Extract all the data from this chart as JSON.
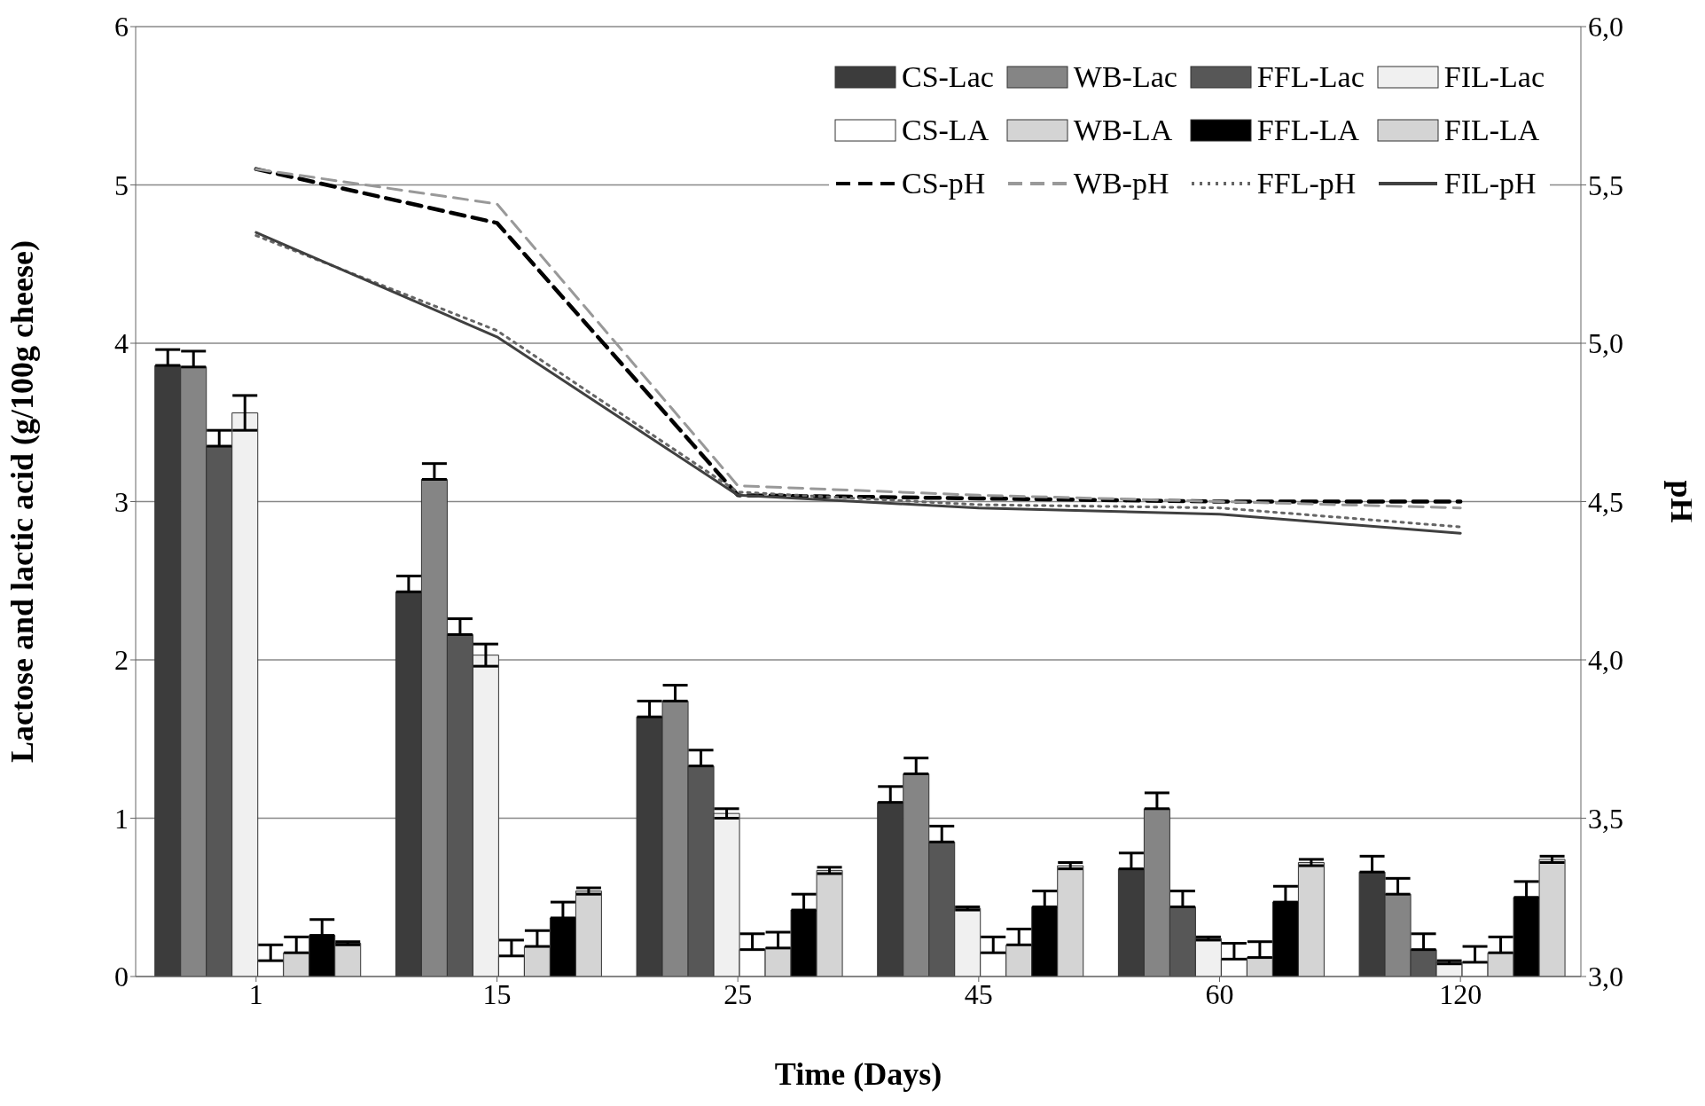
{
  "chart_data": {
    "type": "bar",
    "xlabel": "Time (Days)",
    "ylabel": "Lactose and lactic acid (g/100g cheese)",
    "y2label": "pH",
    "categories": [
      "1",
      "15",
      "25",
      "45",
      "60",
      "120"
    ],
    "ylim": [
      0,
      6
    ],
    "yticks": [
      0,
      1,
      2,
      3,
      4,
      5,
      6
    ],
    "y2lim": [
      3,
      6
    ],
    "y2ticks": [
      {
        "value": 3,
        "label": "3,0"
      },
      {
        "value": 3.5,
        "label": "3,5"
      },
      {
        "value": 4,
        "label": "4,0"
      },
      {
        "value": 4.5,
        "label": "4,5"
      },
      {
        "value": 5,
        "label": "5,0"
      },
      {
        "value": 5.5,
        "label": "5,5"
      },
      {
        "value": 6,
        "label": "6,0"
      }
    ],
    "grid": "y",
    "legend": "top right",
    "series": [
      {
        "name": "CS-Lac",
        "color": "#3c3c3c",
        "values": [
          3.86,
          2.43,
          1.64,
          1.1,
          0.68,
          0.66
        ],
        "errors": [
          [
            3.86,
            3.96
          ],
          [
            2.43,
            2.53
          ],
          [
            1.64,
            1.74
          ],
          [
            1.1,
            1.2
          ],
          [
            0.68,
            0.78
          ],
          [
            0.66,
            0.76
          ]
        ]
      },
      {
        "name": "WB-Lac",
        "color": "#858585",
        "values": [
          3.85,
          3.14,
          1.74,
          1.28,
          1.06,
          0.52
        ],
        "errors": [
          [
            3.85,
            3.95
          ],
          [
            3.14,
            3.24
          ],
          [
            1.74,
            1.84
          ],
          [
            1.28,
            1.38
          ],
          [
            1.06,
            1.16
          ],
          [
            0.52,
            0.62
          ]
        ]
      },
      {
        "name": "FFL-Lac",
        "color": "#575757",
        "values": [
          3.35,
          2.16,
          1.33,
          0.85,
          0.44,
          0.17
        ],
        "errors": [
          [
            3.35,
            3.45
          ],
          [
            2.16,
            2.26
          ],
          [
            1.33,
            1.43
          ],
          [
            0.85,
            0.95
          ],
          [
            0.44,
            0.54
          ],
          [
            0.17,
            0.27
          ]
        ]
      },
      {
        "name": "FIL-Lac",
        "color": "#f0f0f0",
        "values": [
          3.56,
          2.03,
          1.03,
          0.43,
          0.24,
          0.09
        ],
        "errors": [
          0.11,
          0.07,
          0.03,
          0.01,
          0.01,
          0.01
        ]
      },
      {
        "name": "CS-LA",
        "color": "#ffffff",
        "values": [
          0.1,
          0.13,
          0.17,
          0.15,
          0.11,
          0.09
        ],
        "errors": [
          [
            0.1,
            0.2
          ],
          [
            0.13,
            0.23
          ],
          [
            0.17,
            0.27
          ],
          [
            0.15,
            0.25
          ],
          [
            0.11,
            0.21
          ],
          [
            0.09,
            0.19
          ]
        ]
      },
      {
        "name": "WB-LA",
        "color": "#d4d4d4",
        "values": [
          0.15,
          0.19,
          0.18,
          0.2,
          0.12,
          0.15
        ],
        "errors": [
          [
            0.15,
            0.25
          ],
          [
            0.19,
            0.29
          ],
          [
            0.18,
            0.28
          ],
          [
            0.2,
            0.3
          ],
          [
            0.12,
            0.22
          ],
          [
            0.15,
            0.25
          ]
        ]
      },
      {
        "name": "FFL-LA",
        "color": "#000000",
        "values": [
          0.26,
          0.37,
          0.42,
          0.44,
          0.47,
          0.5
        ],
        "errors": [
          [
            0.26,
            0.36
          ],
          [
            0.37,
            0.47
          ],
          [
            0.42,
            0.52
          ],
          [
            0.44,
            0.54
          ],
          [
            0.47,
            0.57
          ],
          [
            0.5,
            0.6
          ]
        ]
      },
      {
        "name": "FIL-LA",
        "color": "#d4d4d4",
        "values": [
          0.21,
          0.54,
          0.67,
          0.7,
          0.72,
          0.74
        ],
        "errors": [
          0.01,
          0.02,
          0.02,
          0.02,
          0.02,
          0.02
        ]
      },
      {
        "name": "CS-pH",
        "type": "line",
        "axis": "y2",
        "line_style": "dashed",
        "color": "#000000",
        "values": [
          5.55,
          5.38,
          4.52,
          4.51,
          4.5,
          4.5
        ]
      },
      {
        "name": "WB-pH",
        "type": "line",
        "axis": "y2",
        "line_style": "dashed",
        "color": "#999999",
        "values": [
          5.55,
          5.44,
          4.55,
          4.52,
          4.5,
          4.48
        ]
      },
      {
        "name": "FFL-pH",
        "type": "line",
        "axis": "y2",
        "line_style": "dotted",
        "color": "#666666",
        "values": [
          5.34,
          5.04,
          4.53,
          4.49,
          4.48,
          4.42
        ]
      },
      {
        "name": "FIL-pH",
        "type": "line",
        "axis": "y2",
        "line_style": "solid",
        "color": "#404040",
        "values": [
          5.35,
          5.02,
          4.52,
          4.48,
          4.46,
          4.4
        ]
      }
    ]
  }
}
